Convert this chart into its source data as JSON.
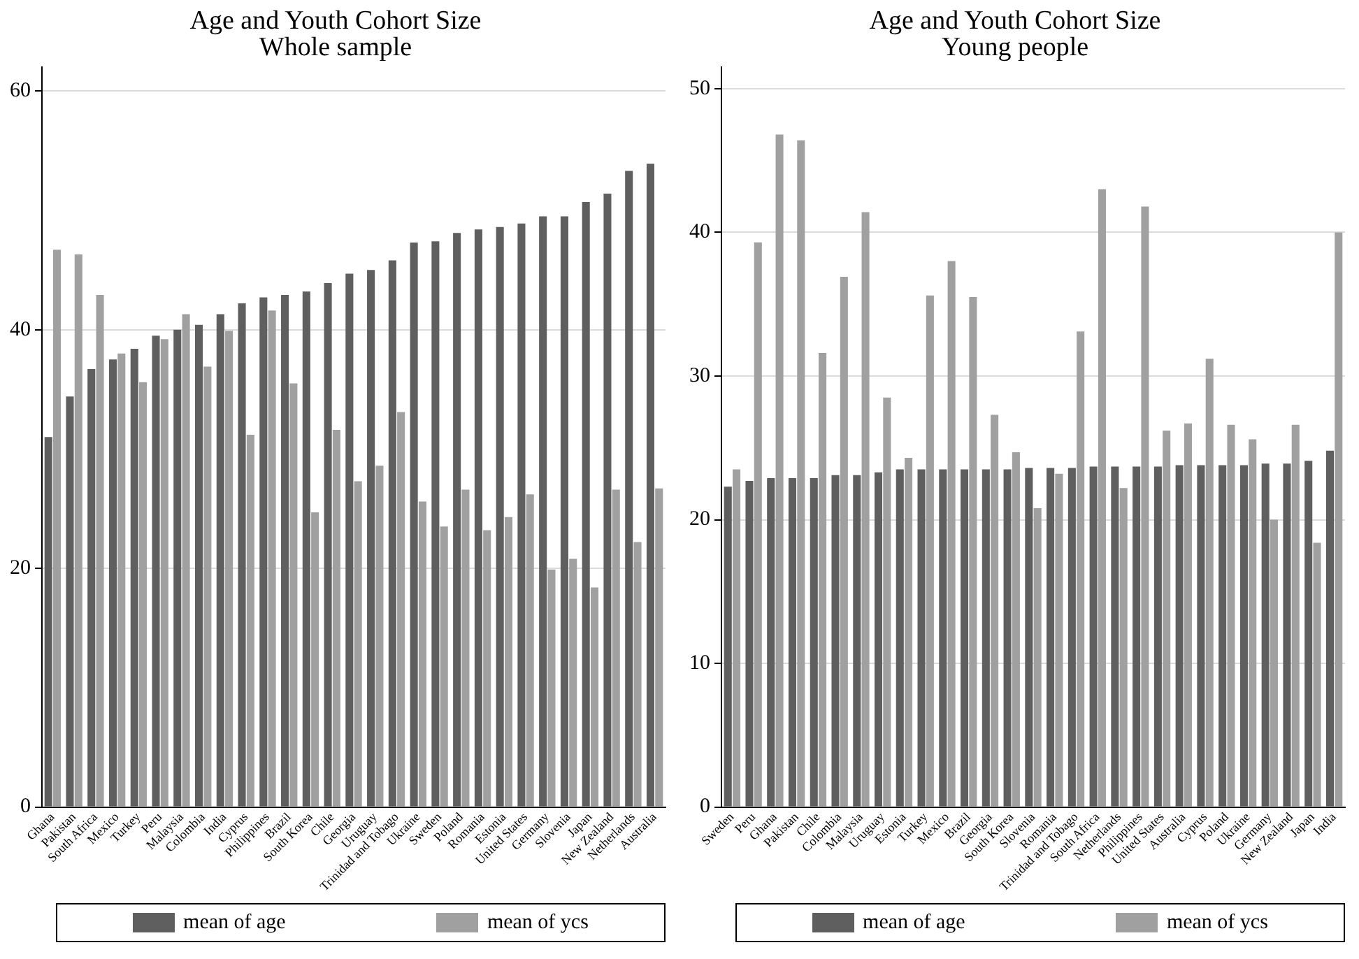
{
  "chart_data": [
    {
      "type": "bar",
      "title": "Age and Youth Cohort Size",
      "subtitle": "Whole sample",
      "categories": [
        "Ghana",
        "Pakistan",
        "South Africa",
        "Mexico",
        "Turkey",
        "Peru",
        "Malaysia",
        "Colombia",
        "India",
        "Cyprus",
        "Philippines",
        "Brazil",
        "South Korea",
        "Chile",
        "Georgia",
        "Uruguay",
        "Trinidad and Tobago",
        "Ukraine",
        "Sweden",
        "Poland",
        "Romania",
        "Estonia",
        "United States",
        "Germany",
        "Slovenia",
        "Japan",
        "New Zealand",
        "Netherlands",
        "Australia"
      ],
      "series": [
        {
          "name": "mean of age",
          "color": "#5f5f5f",
          "values": [
            31.0,
            34.4,
            36.7,
            37.5,
            38.4,
            39.5,
            40.0,
            40.4,
            41.3,
            42.2,
            42.7,
            42.9,
            43.2,
            43.9,
            44.7,
            45.0,
            45.8,
            47.3,
            47.4,
            48.1,
            48.4,
            48.6,
            48.9,
            49.5,
            49.5,
            50.7,
            51.4,
            53.3,
            53.9
          ]
        },
        {
          "name": "mean of ycs",
          "color": "#a0a0a0",
          "values": [
            46.7,
            46.3,
            42.9,
            38.0,
            35.6,
            39.2,
            41.3,
            36.9,
            39.9,
            31.2,
            41.6,
            35.5,
            24.7,
            31.6,
            27.3,
            28.6,
            33.1,
            25.6,
            23.5,
            26.6,
            23.2,
            24.3,
            26.2,
            19.9,
            20.8,
            18.4,
            26.6,
            22.2,
            26.7
          ]
        }
      ],
      "ylim": [
        0,
        62
      ],
      "yticks": [
        0,
        20,
        40,
        60
      ],
      "grid": "y",
      "legend": "bottom"
    },
    {
      "type": "bar",
      "title": "Age and Youth Cohort Size",
      "subtitle": "Young people",
      "categories": [
        "Sweden",
        "Peru",
        "Ghana",
        "Pakistan",
        "Chile",
        "Colombia",
        "Malaysia",
        "Uruguay",
        "Estonia",
        "Turkey",
        "Mexico",
        "Brazil",
        "Georgia",
        "South Korea",
        "Slovenia",
        "Romania",
        "Trinidad and Tobago",
        "South Africa",
        "Netherlands",
        "Philippines",
        "United States",
        "Australia",
        "Cyprus",
        "Poland",
        "Ukraine",
        "Germany",
        "New Zealand",
        "Japan",
        "India"
      ],
      "series": [
        {
          "name": "mean of age",
          "color": "#5f5f5f",
          "values": [
            22.3,
            22.7,
            22.9,
            22.9,
            22.9,
            23.1,
            23.1,
            23.3,
            23.5,
            23.5,
            23.5,
            23.5,
            23.5,
            23.5,
            23.6,
            23.6,
            23.6,
            23.7,
            23.7,
            23.7,
            23.7,
            23.8,
            23.8,
            23.8,
            23.8,
            23.9,
            23.9,
            24.1,
            24.8
          ]
        },
        {
          "name": "mean of ycs",
          "color": "#a0a0a0",
          "values": [
            23.5,
            39.3,
            46.8,
            46.4,
            31.6,
            36.9,
            41.4,
            28.5,
            24.3,
            35.6,
            38.0,
            35.5,
            27.3,
            24.7,
            20.8,
            23.2,
            33.1,
            43.0,
            22.2,
            41.8,
            26.2,
            26.7,
            31.2,
            26.6,
            25.6,
            20.0,
            26.6,
            18.4,
            40.0
          ]
        }
      ],
      "ylim": [
        0,
        51.5
      ],
      "yticks": [
        0,
        10,
        20,
        30,
        40,
        50
      ],
      "grid": "y",
      "legend": "bottom"
    }
  ]
}
